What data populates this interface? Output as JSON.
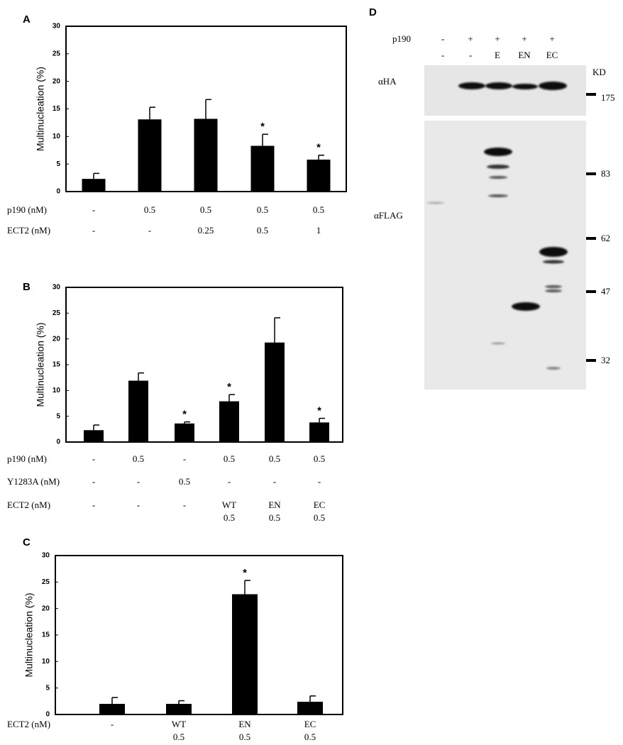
{
  "chart_data": [
    {
      "type": "bar",
      "panel": "A",
      "ylabel": "Multinucleation (%)",
      "ylim": [
        0,
        30
      ],
      "yticks": [
        0,
        5,
        10,
        15,
        20,
        25,
        30
      ],
      "color": "#000000",
      "values": [
        2.3,
        13.1,
        13.2,
        8.3,
        5.8
      ],
      "errors": [
        1.0,
        2.2,
        3.5,
        2.1,
        0.8
      ],
      "significant": [
        false,
        false,
        false,
        true,
        true
      ],
      "significance_mark": "*",
      "conditions": [
        {
          "label": "p190 (nM)",
          "values": [
            "-",
            "0.5",
            "0.5",
            "0.5",
            "0.5"
          ]
        },
        {
          "label": "ECT2 (nM)",
          "values": [
            "-",
            "-",
            "0.25",
            "0.5",
            "1"
          ]
        }
      ]
    },
    {
      "type": "bar",
      "panel": "B",
      "ylabel": "Multinucleation (%)",
      "ylim": [
        0,
        30
      ],
      "yticks": [
        0,
        5,
        10,
        15,
        20,
        25,
        30
      ],
      "color": "#000000",
      "values": [
        2.3,
        11.9,
        3.6,
        7.9,
        19.3,
        3.8
      ],
      "errors": [
        1.0,
        1.5,
        0.3,
        1.3,
        4.8,
        0.8
      ],
      "significant": [
        false,
        false,
        true,
        true,
        false,
        true
      ],
      "significance_mark": "*",
      "conditions": [
        {
          "label": "p190 (nM)",
          "values": [
            "-",
            "0.5",
            "-",
            "0.5",
            "0.5",
            "0.5"
          ]
        },
        {
          "label": "Y1283A (nM)",
          "values": [
            "-",
            "-",
            "0.5",
            "-",
            "-",
            "-"
          ]
        },
        {
          "label": "ECT2 (nM)",
          "values": [
            "-",
            "-",
            "-",
            [
              "WT",
              "0.5"
            ],
            [
              "EN",
              "0.5"
            ],
            [
              "EC",
              "0.5"
            ]
          ]
        }
      ]
    },
    {
      "type": "bar",
      "panel": "C",
      "ylabel": "Multinucleation (%)",
      "ylim": [
        0,
        30
      ],
      "yticks": [
        0,
        5,
        10,
        15,
        20,
        25,
        30
      ],
      "color": "#000000",
      "values": [
        2.0,
        2.0,
        22.7,
        2.4
      ],
      "errors": [
        1.2,
        0.6,
        2.6,
        1.1
      ],
      "significant": [
        false,
        false,
        true,
        false
      ],
      "significance_mark": "*",
      "conditions": [
        {
          "label": "ECT2 (nM)",
          "values": [
            "-",
            [
              "WT",
              "0.5"
            ],
            [
              "EN",
              "0.5"
            ],
            [
              "EC",
              "0.5"
            ]
          ]
        }
      ]
    }
  ],
  "blot": {
    "panel": "D",
    "header": [
      {
        "label": "p190",
        "lanes": [
          "-",
          "+",
          "+",
          "+",
          "+"
        ]
      },
      {
        "lanes": [
          "-",
          "-",
          "E",
          "EN",
          "EC"
        ]
      }
    ],
    "antibodies": [
      "αHA",
      "αFLAG"
    ],
    "unit": "KD",
    "markers": [
      "175",
      "83",
      "62",
      "47",
      "32"
    ]
  }
}
